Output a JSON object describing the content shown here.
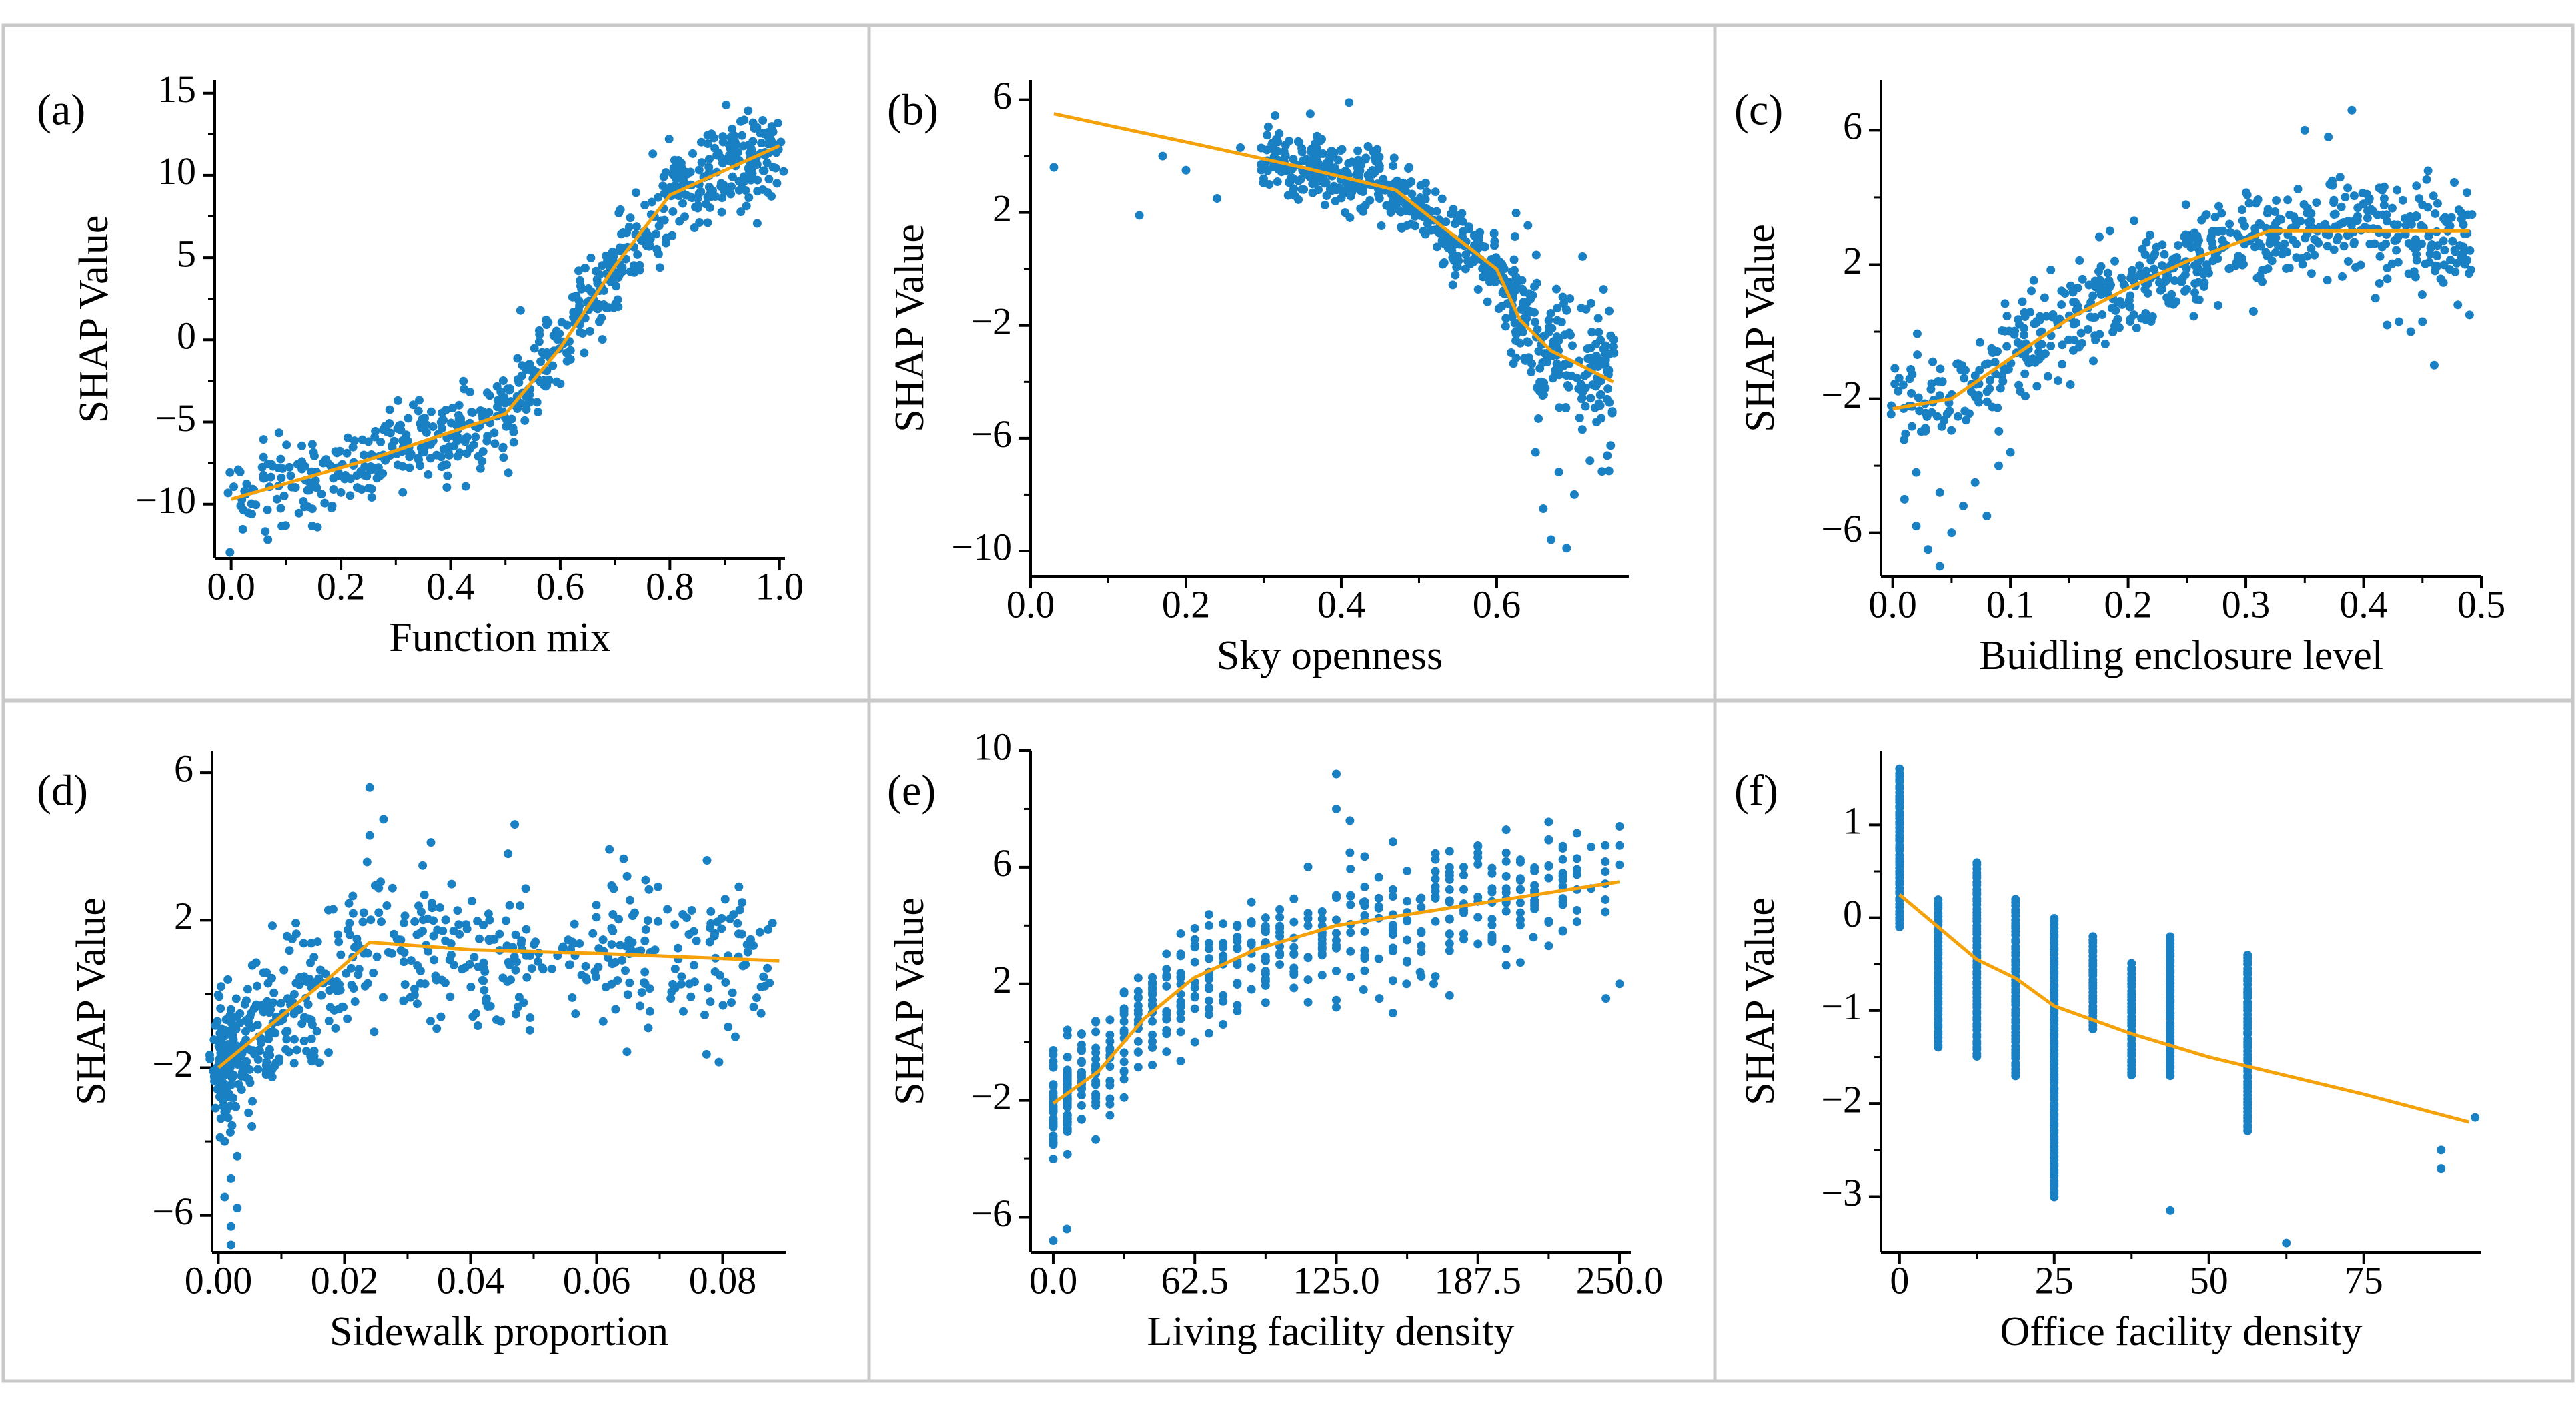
{
  "figure": {
    "colors": {
      "points": "#1a80c4",
      "trend": "#f5a20a",
      "frame": "#c9c9c9"
    }
  },
  "chart_data": [
    {
      "type": "scatter",
      "panel": "(a)",
      "xlabel": "Function mix",
      "ylabel": "SHAP Value",
      "xlim": [
        -0.03,
        1.01
      ],
      "ylim": [
        -13.3,
        15.8
      ],
      "xticks": [
        0.0,
        0.2,
        0.4,
        0.6,
        0.8,
        1.0
      ],
      "xtick_labels": [
        "0.0",
        "0.2",
        "0.4",
        "0.6",
        "0.8",
        "1.0"
      ],
      "yticks": [
        -10,
        -5,
        0,
        5,
        10,
        15
      ],
      "ytick_labels": [
        "−10",
        "−5",
        "0",
        "5",
        "10",
        "15"
      ],
      "trend": {
        "x": [
          0.0,
          0.25,
          0.5,
          0.55,
          0.6,
          0.65,
          0.7,
          0.8,
          0.9,
          1.0
        ],
        "y": [
          -9.7,
          -7.3,
          -4.5,
          -2.5,
          -0.5,
          2.0,
          4.5,
          8.8,
          10.3,
          11.8
        ]
      },
      "point_spread": 1.35,
      "point_count": 680
    },
    {
      "type": "scatter",
      "panel": "(b)",
      "xlabel": "Sky openness",
      "ylabel": "SHAP Value",
      "xlim": [
        0.0,
        0.77
      ],
      "ylim": [
        -10.9,
        6.7
      ],
      "xticks": [
        0.0,
        0.2,
        0.4,
        0.6
      ],
      "xtick_labels": [
        "0.0",
        "0.2",
        "0.4",
        "0.6"
      ],
      "yticks": [
        -10,
        -6,
        -2,
        2,
        6
      ],
      "ytick_labels": [
        "−10",
        "−6",
        "−2",
        "2",
        "6"
      ],
      "trend": {
        "x": [
          0.03,
          0.2,
          0.35,
          0.47,
          0.53,
          0.6,
          0.63,
          0.67,
          0.7,
          0.75
        ],
        "y": [
          5.5,
          4.5,
          3.6,
          2.8,
          1.5,
          0.0,
          -1.8,
          -2.9,
          -3.3,
          -4.0
        ]
      },
      "point_spread": 0.55,
      "point_count": 620,
      "extra_points": [
        {
          "x": 0.03,
          "y": 3.6
        },
        {
          "x": 0.14,
          "y": 1.9
        },
        {
          "x": 0.17,
          "y": 4.0
        },
        {
          "x": 0.2,
          "y": 3.5
        },
        {
          "x": 0.24,
          "y": 2.5
        },
        {
          "x": 0.27,
          "y": 4.3
        },
        {
          "x": 0.3,
          "y": 3.2
        },
        {
          "x": 0.32,
          "y": 4.8
        },
        {
          "x": 0.34,
          "y": 2.6
        },
        {
          "x": 0.36,
          "y": 5.5
        },
        {
          "x": 0.41,
          "y": 5.9
        },
        {
          "x": 0.66,
          "y": -8.5
        },
        {
          "x": 0.67,
          "y": -9.6
        },
        {
          "x": 0.69,
          "y": -9.9
        },
        {
          "x": 0.7,
          "y": -8.0
        },
        {
          "x": 0.68,
          "y": -7.2
        },
        {
          "x": 0.72,
          "y": -6.8
        },
        {
          "x": 0.65,
          "y": -6.5
        }
      ]
    },
    {
      "type": "scatter",
      "panel": "(c)",
      "xlabel": "Buidling enclosure level",
      "ylabel": "SHAP Value",
      "xlim": [
        -0.01,
        0.5
      ],
      "ylim": [
        -7.3,
        7.5
      ],
      "xticks": [
        0.0,
        0.1,
        0.2,
        0.3,
        0.4,
        0.5
      ],
      "xtick_labels": [
        "0.0",
        "0.1",
        "0.2",
        "0.3",
        "0.4",
        "0.5"
      ],
      "yticks": [
        -6,
        -2,
        2,
        6
      ],
      "ytick_labels": [
        "−6",
        "−2",
        "2",
        "6"
      ],
      "trend": {
        "x": [
          0.0,
          0.05,
          0.1,
          0.15,
          0.2,
          0.25,
          0.32,
          0.4,
          0.49
        ],
        "y": [
          -2.3,
          -2.0,
          -0.8,
          0.4,
          1.3,
          2.1,
          3.0,
          3.0,
          3.0
        ]
      },
      "point_spread": 0.75,
      "point_count": 640,
      "extra_points": [
        {
          "x": 0.01,
          "y": -5.0
        },
        {
          "x": 0.02,
          "y": -5.8
        },
        {
          "x": 0.03,
          "y": -6.5
        },
        {
          "x": 0.04,
          "y": -7.0
        },
        {
          "x": 0.05,
          "y": -6.0
        },
        {
          "x": 0.06,
          "y": -5.2
        },
        {
          "x": 0.07,
          "y": -4.5
        },
        {
          "x": 0.08,
          "y": -5.5
        },
        {
          "x": 0.02,
          "y": -4.2
        },
        {
          "x": 0.04,
          "y": -4.8
        },
        {
          "x": 0.09,
          "y": -4.0
        },
        {
          "x": 0.1,
          "y": -3.6
        },
        {
          "x": 0.35,
          "y": 6.0
        },
        {
          "x": 0.37,
          "y": 5.8
        },
        {
          "x": 0.39,
          "y": 6.6
        },
        {
          "x": 0.38,
          "y": 4.6
        },
        {
          "x": 0.4,
          "y": 3.8
        },
        {
          "x": 0.41,
          "y": 1.0
        },
        {
          "x": 0.42,
          "y": 0.2
        },
        {
          "x": 0.43,
          "y": 0.3
        },
        {
          "x": 0.44,
          "y": 0.0
        },
        {
          "x": 0.46,
          "y": -1.0
        },
        {
          "x": 0.48,
          "y": 0.8
        },
        {
          "x": 0.49,
          "y": 0.5
        },
        {
          "x": 0.42,
          "y": 1.9
        },
        {
          "x": 0.45,
          "y": 0.3
        }
      ]
    },
    {
      "type": "scatter",
      "panel": "(d)",
      "xlabel": "Sidewalk proportion",
      "ylabel": "SHAP Value",
      "xlim": [
        -0.001,
        0.09
      ],
      "ylim": [
        -7.0,
        6.6
      ],
      "xticks": [
        0.0,
        0.02,
        0.04,
        0.06,
        0.08
      ],
      "xtick_labels": [
        "0.00",
        "0.02",
        "0.04",
        "0.06",
        "0.08"
      ],
      "yticks": [
        -6,
        -2,
        2
      ],
      "ytick_labels": [
        "−6",
        "−2",
        "2"
      ],
      "ytick_labels_extra": [
        "6"
      ],
      "trend": {
        "x": [
          0.0,
          0.01,
          0.018,
          0.024,
          0.04,
          0.06,
          0.089
        ],
        "y": [
          -2.0,
          -0.6,
          0.5,
          1.4,
          1.2,
          1.1,
          0.9
        ]
      },
      "point_spread": 0.85,
      "point_count": 620,
      "extra_points": [
        {
          "x": 0.001,
          "y": -4.0
        },
        {
          "x": 0.001,
          "y": -5.5
        },
        {
          "x": 0.002,
          "y": -6.3
        },
        {
          "x": 0.002,
          "y": -5.0
        },
        {
          "x": 0.003,
          "y": -5.8
        },
        {
          "x": 0.001,
          "y": -3.2
        },
        {
          "x": 0.003,
          "y": -4.4
        },
        {
          "x": 0.002,
          "y": -6.8
        },
        {
          "x": 0.024,
          "y": 5.6
        },
        {
          "x": 0.047,
          "y": 4.6
        },
        {
          "x": 0.024,
          "y": 4.3
        }
      ]
    },
    {
      "type": "scatter",
      "panel": "(e)",
      "xlabel": "Living facility density",
      "ylabel": "SHAP Value",
      "xlim": [
        -10,
        255
      ],
      "ylim": [
        -7.2,
        10.0
      ],
      "xticks": [
        0.0,
        62.5,
        125.0,
        187.5,
        250.0
      ],
      "xtick_labels": [
        "0.0",
        "62.5",
        "125.0",
        "187.5",
        "250.0"
      ],
      "yticks": [
        -6,
        -2,
        2,
        6,
        10
      ],
      "ytick_labels": [
        "−6",
        "−2",
        "2",
        "6",
        "10"
      ],
      "trend": {
        "x": [
          0,
          20,
          40,
          62,
          90,
          125,
          250
        ],
        "y": [
          -2.1,
          -1.0,
          0.8,
          2.2,
          3.2,
          4.0,
          5.5
        ]
      },
      "point_spread": 1.0,
      "point_count": 520,
      "discrete_step": 6.25,
      "extra_points": [
        {
          "x": 125,
          "y": 9.2
        },
        {
          "x": 125,
          "y": 8.0
        },
        {
          "x": 131,
          "y": 7.6
        },
        {
          "x": 131,
          "y": 6.5
        },
        {
          "x": 137,
          "y": 4.8
        },
        {
          "x": 150,
          "y": 5.0
        },
        {
          "x": 162,
          "y": 4.9
        },
        {
          "x": 175,
          "y": 4.8
        },
        {
          "x": 137,
          "y": 1.8
        },
        {
          "x": 144,
          "y": 1.5
        },
        {
          "x": 150,
          "y": 1.0
        },
        {
          "x": 156,
          "y": 2.0
        },
        {
          "x": 162,
          "y": 2.4
        },
        {
          "x": 168,
          "y": 2.0
        },
        {
          "x": 175,
          "y": 1.6
        },
        {
          "x": 200,
          "y": 3.2
        },
        {
          "x": 212,
          "y": 3.6
        },
        {
          "x": 225,
          "y": 3.8
        },
        {
          "x": 244,
          "y": 1.5
        },
        {
          "x": 250,
          "y": 2.0
        },
        {
          "x": 0,
          "y": -6.8
        },
        {
          "x": 6,
          "y": -6.4
        }
      ]
    },
    {
      "type": "scatter",
      "panel": "(f)",
      "xlabel": "Office facility density",
      "ylabel": "SHAP Value",
      "xlim": [
        -3,
        94
      ],
      "ylim": [
        -3.6,
        1.8
      ],
      "xticks": [
        0,
        25,
        50,
        75
      ],
      "xtick_labels": [
        "0",
        "25",
        "50",
        "75"
      ],
      "yticks": [
        -3,
        -2,
        -1,
        0,
        1
      ],
      "ytick_labels": [
        "−3",
        "−2",
        "−1",
        "0",
        "1"
      ],
      "trend": {
        "x": [
          0,
          6.25,
          12.5,
          18.75,
          25,
          37.5,
          50,
          62.5,
          75,
          92
        ],
        "y": [
          0.25,
          -0.1,
          -0.45,
          -0.65,
          -0.95,
          -1.25,
          -1.5,
          -1.7,
          -1.9,
          -2.2
        ]
      },
      "columns": [
        {
          "x": 0,
          "ymin": -0.1,
          "ymax": 1.6
        },
        {
          "x": 6.25,
          "ymin": -1.4,
          "ymax": 0.2
        },
        {
          "x": 12.5,
          "ymin": -1.5,
          "ymax": 0.6
        },
        {
          "x": 18.75,
          "ymin": -1.7,
          "ymax": 0.2
        },
        {
          "x": 25,
          "ymin": -3.0,
          "ymax": 0.0
        },
        {
          "x": 31.25,
          "ymin": -1.2,
          "ymax": -0.2
        },
        {
          "x": 37.5,
          "ymin": -1.7,
          "ymax": -0.5
        },
        {
          "x": 43.75,
          "ymin": -1.7,
          "ymax": -0.2
        },
        {
          "x": 56.25,
          "ymin": -2.3,
          "ymax": -0.4
        }
      ],
      "extra_points": [
        {
          "x": 43.75,
          "y": -3.15
        },
        {
          "x": 62.5,
          "y": -3.5
        },
        {
          "x": 87.5,
          "y": -2.5
        },
        {
          "x": 87.5,
          "y": -2.7
        },
        {
          "x": 93,
          "y": -2.15
        }
      ]
    }
  ]
}
